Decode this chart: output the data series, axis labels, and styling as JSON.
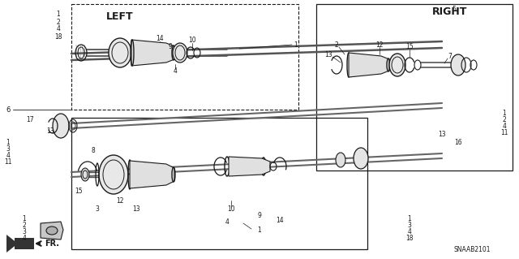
{
  "bg_color": "#ffffff",
  "line_color": "#1a1a1a",
  "fig_width": 6.4,
  "fig_height": 3.19,
  "dpi": 100,
  "diagram_code": "SNAAB2101",
  "left_label": "LEFT",
  "right_label": "RIGHT",
  "fr_label": "FR."
}
